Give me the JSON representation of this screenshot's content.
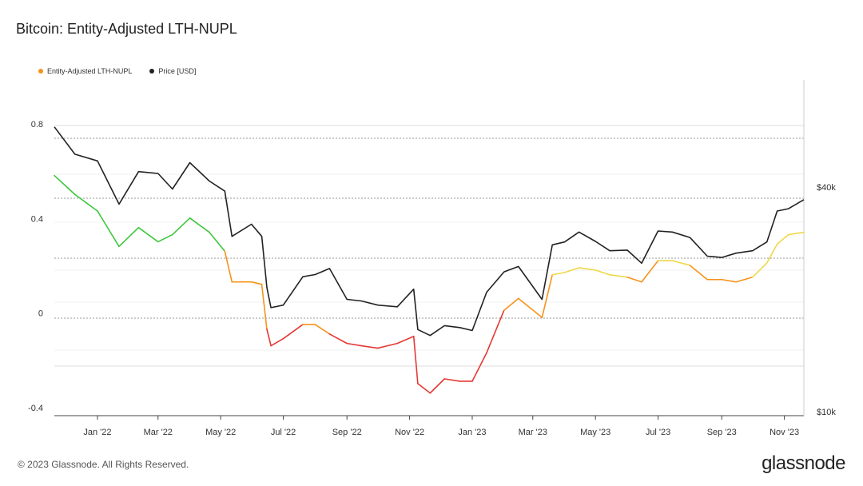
{
  "title": "Bitcoin: Entity-Adjusted LTH-NUPL",
  "legend": [
    {
      "label": "Entity-Adjusted LTH-NUPL",
      "color": "#f7931a"
    },
    {
      "label": "Price [USD]",
      "color": "#222222"
    }
  ],
  "footer": "© 2023 Glassnode. All Rights Reserved.",
  "logo": "glassnode",
  "chart_data": {
    "type": "line",
    "x_ticks": [
      "Jan '22",
      "Mar '22",
      "May '22",
      "Jul '22",
      "Sep '22",
      "Nov '22",
      "Jan '23",
      "Mar '23",
      "May '23",
      "Jul '23",
      "Sep '23",
      "Nov '23"
    ],
    "y_left_ticks": [
      "0.8",
      "0.4",
      "0",
      "-0.4"
    ],
    "y_left_range": [
      -0.4,
      0.8
    ],
    "y_right_ticks": [
      "$40k",
      "$10k"
    ],
    "y_right_scale": "log",
    "y_right_range": [
      10000,
      70000
    ],
    "grid": "horizontal-dotted",
    "legend_position": "top-left",
    "x_range": [
      "2021-11-20",
      "2023-11-20"
    ],
    "zone_colors": {
      "above_0_75": "#3ec73e",
      "between_0_5_0_75": "#f0d84a",
      "between_0_25_0_5": "#f7931a",
      "below_0_25": "#e53935"
    },
    "series": [
      {
        "name": "Entity-Adjusted LTH-NUPL",
        "color": "#f7931a",
        "x": [
          "2021-11-20",
          "2021-12-10",
          "2022-01-01",
          "2022-01-22",
          "2022-02-10",
          "2022-03-01",
          "2022-03-15",
          "2022-04-01",
          "2022-04-20",
          "2022-05-05",
          "2022-05-12",
          "2022-05-31",
          "2022-06-10",
          "2022-06-15",
          "2022-06-19",
          "2022-07-01",
          "2022-07-20",
          "2022-08-01",
          "2022-08-15",
          "2022-09-01",
          "2022-09-15",
          "2022-10-01",
          "2022-10-20",
          "2022-11-05",
          "2022-11-09",
          "2022-11-21",
          "2022-12-05",
          "2022-12-20",
          "2023-01-01",
          "2023-01-15",
          "2023-02-01",
          "2023-02-15",
          "2023-03-10",
          "2023-03-20",
          "2023-04-01",
          "2023-04-15",
          "2023-05-01",
          "2023-05-15",
          "2023-06-01",
          "2023-06-15",
          "2023-07-01",
          "2023-07-15",
          "2023-08-01",
          "2023-08-18",
          "2023-09-01",
          "2023-09-15",
          "2023-10-01",
          "2023-10-15",
          "2023-10-25",
          "2023-11-05",
          "2023-11-20"
        ],
        "values": [
          0.7,
          0.62,
          0.55,
          0.4,
          0.48,
          0.42,
          0.45,
          0.52,
          0.46,
          0.38,
          0.25,
          0.25,
          0.24,
          0.05,
          -0.02,
          0.01,
          0.07,
          0.07,
          0.03,
          -0.01,
          -0.02,
          -0.03,
          -0.01,
          0.02,
          -0.18,
          -0.22,
          -0.16,
          -0.17,
          -0.17,
          -0.05,
          0.13,
          0.18,
          0.1,
          0.28,
          0.29,
          0.31,
          0.3,
          0.28,
          0.27,
          0.25,
          0.34,
          0.34,
          0.32,
          0.26,
          0.26,
          0.25,
          0.27,
          0.33,
          0.41,
          0.45,
          0.46
        ]
      },
      {
        "name": "Price [USD]",
        "color": "#222222",
        "x": [
          "2021-11-20",
          "2021-12-10",
          "2022-01-01",
          "2022-01-22",
          "2022-02-10",
          "2022-03-01",
          "2022-03-15",
          "2022-04-01",
          "2022-04-20",
          "2022-05-05",
          "2022-05-12",
          "2022-05-31",
          "2022-06-10",
          "2022-06-15",
          "2022-06-19",
          "2022-07-01",
          "2022-07-20",
          "2022-08-01",
          "2022-08-15",
          "2022-09-01",
          "2022-09-15",
          "2022-10-01",
          "2022-10-20",
          "2022-11-05",
          "2022-11-09",
          "2022-11-21",
          "2022-12-05",
          "2022-12-20",
          "2023-01-01",
          "2023-01-15",
          "2023-02-01",
          "2023-02-15",
          "2023-03-10",
          "2023-03-20",
          "2023-04-01",
          "2023-04-15",
          "2023-05-01",
          "2023-05-15",
          "2023-06-01",
          "2023-06-15",
          "2023-07-01",
          "2023-07-15",
          "2023-08-01",
          "2023-08-18",
          "2023-09-01",
          "2023-09-15",
          "2023-10-01",
          "2023-10-15",
          "2023-10-25",
          "2023-11-05",
          "2023-11-20"
        ],
        "values": [
          58000,
          49000,
          47000,
          36000,
          44000,
          43500,
          39500,
          46500,
          41500,
          39000,
          29500,
          31800,
          29500,
          21500,
          19000,
          19300,
          23000,
          23300,
          24200,
          20000,
          19800,
          19300,
          19100,
          21300,
          16600,
          16000,
          17000,
          16800,
          16500,
          20900,
          23700,
          24500,
          20000,
          28000,
          28500,
          30300,
          28600,
          27000,
          27100,
          25000,
          30500,
          30300,
          29300,
          26100,
          25900,
          26600,
          27000,
          28500,
          34500,
          35000,
          37000
        ]
      }
    ]
  }
}
